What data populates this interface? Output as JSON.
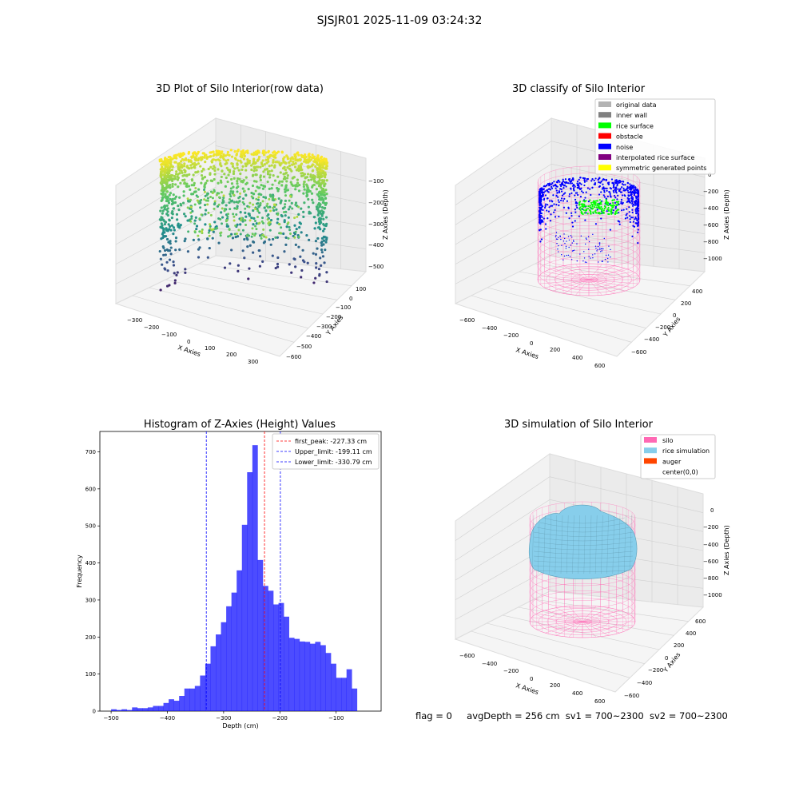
{
  "figure": {
    "title": "SJSJR01 2025-11-09 03:24:32",
    "status": {
      "flag": "flag = 0",
      "avg_depth": "avgDepth = 256 cm",
      "sv1": "sv1 = 700~2300",
      "sv2": "sv2 = 700~2300"
    }
  },
  "panel_raw": {
    "title": "3D Plot of Silo Interior(row data)",
    "xlabel": "X Axies",
    "ylabel": "Y Axies",
    "zlabel": "Z Axies (Depth)",
    "x_ticks": [
      "−300",
      "−200",
      "−100",
      "0",
      "100",
      "200",
      "300"
    ],
    "y_ticks": [
      "100",
      "0",
      "−100",
      "−200",
      "−300",
      "−400",
      "−500",
      "−600"
    ],
    "z_ticks": [
      "−100",
      "−200",
      "−300",
      "−400",
      "−500"
    ]
  },
  "panel_classify": {
    "title": "3D classify of Silo Interior",
    "xlabel": "X Axies",
    "ylabel": "Y Axies",
    "zlabel": "Z Axies (Depth)",
    "x_ticks": [
      "−600",
      "−400",
      "−200",
      "0",
      "200",
      "400",
      "600"
    ],
    "y_ticks": [
      "400",
      "200",
      "0",
      "−200",
      "−400",
      "−600"
    ],
    "z_ticks": [
      "0",
      "−200",
      "−400",
      "−600",
      "−800",
      "−1000"
    ],
    "legend": [
      {
        "label": "original data",
        "color": "#b3b3b3"
      },
      {
        "label": "inner wall",
        "color": "#808080"
      },
      {
        "label": "rice surface",
        "color": "#00ff00"
      },
      {
        "label": "obstacle",
        "color": "#ff0000"
      },
      {
        "label": "noise",
        "color": "#0000ff"
      },
      {
        "label": "interpolated rice surface",
        "color": "#800080"
      },
      {
        "label": "symmetric generated points",
        "color": "#ffff00"
      }
    ]
  },
  "panel_sim": {
    "title": "3D simulation of Silo Interior",
    "xlabel": "X Axies",
    "ylabel": "Y Axies",
    "zlabel": "Z Axies (Depth)",
    "x_ticks": [
      "−600",
      "−400",
      "−200",
      "0",
      "200",
      "400",
      "600"
    ],
    "y_ticks": [
      "600",
      "400",
      "200",
      "0",
      "−200",
      "−400",
      "−600"
    ],
    "z_ticks": [
      "0",
      "−200",
      "−400",
      "−600",
      "−800",
      "−1000"
    ],
    "legend": [
      {
        "label": "silo",
        "color": "#ff69b4"
      },
      {
        "label": "rice simulation",
        "color": "#87ceeb"
      },
      {
        "label": "auger",
        "color": "#ff4500"
      },
      {
        "label": "center(0,0)",
        "color": ""
      }
    ]
  },
  "chart_data": {
    "type": "bar",
    "title": "Histogram of Z-Axies (Height) Values",
    "xlabel": "Depth (cm)",
    "ylabel": "Frequency",
    "xlim": [
      -520,
      -20
    ],
    "ylim": [
      0,
      755
    ],
    "x_ticks": [
      -500,
      -400,
      -300,
      -200,
      -100
    ],
    "y_ticks": [
      0,
      100,
      200,
      300,
      400,
      500,
      600,
      700
    ],
    "bar_color": "#0000ff",
    "bins": {
      "start": -500,
      "width": 9.3,
      "counts": [
        5,
        3,
        5,
        3,
        10,
        8,
        8,
        10,
        14,
        14,
        22,
        32,
        28,
        41,
        61,
        61,
        68,
        96,
        128,
        175,
        207,
        240,
        283,
        320,
        380,
        503,
        645,
        718,
        408,
        338,
        325,
        288,
        292,
        255,
        198,
        195,
        188,
        187,
        182,
        187,
        178,
        157,
        128,
        90,
        90,
        113,
        61
      ]
    },
    "lines": [
      {
        "name": "first_peak: -227.33 cm",
        "x": -227.33,
        "color": "#ff0000"
      },
      {
        "name": "Upper_limit: -199.11 cm",
        "x": -199.11,
        "color": "#0000ff"
      },
      {
        "name": "Lower_limit: -330.79 cm",
        "x": -330.79,
        "color": "#0000ff"
      }
    ],
    "legend_position": "top-right"
  }
}
